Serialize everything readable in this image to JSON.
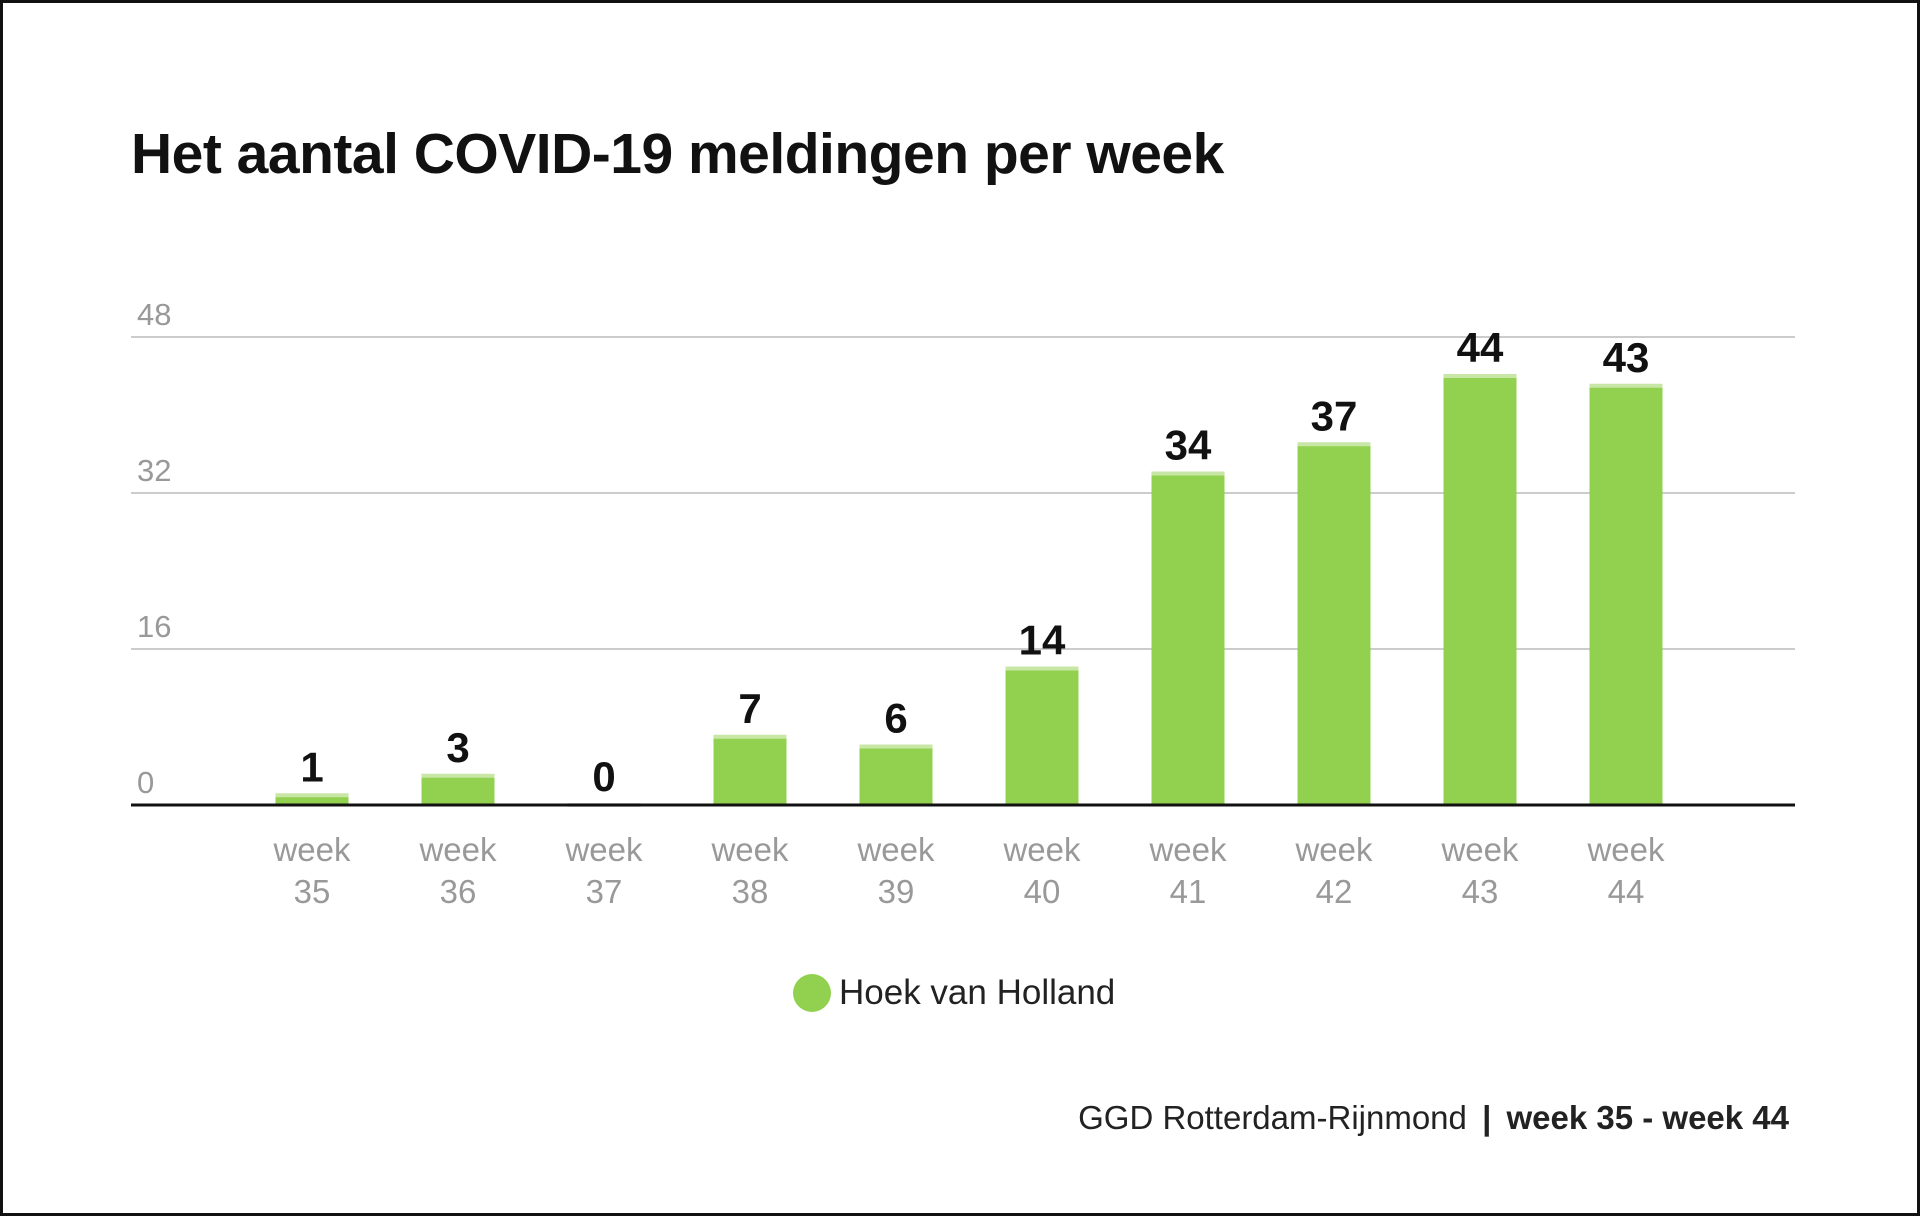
{
  "chart_data": {
    "type": "bar",
    "title": "Het aantal COVID-19 meldingen per week",
    "categories": [
      [
        "week",
        "35"
      ],
      [
        "week",
        "36"
      ],
      [
        "week",
        "37"
      ],
      [
        "week",
        "38"
      ],
      [
        "week",
        "39"
      ],
      [
        "week",
        "40"
      ],
      [
        "week",
        "41"
      ],
      [
        "week",
        "42"
      ],
      [
        "week",
        "43"
      ],
      [
        "week",
        "44"
      ]
    ],
    "series": [
      {
        "name": "Hoek van Holland",
        "values": [
          1,
          3,
          0,
          7,
          6,
          14,
          34,
          37,
          44,
          43
        ],
        "color": "#92d050"
      }
    ],
    "yticks": [
      0,
      16,
      32,
      48
    ],
    "ylim": [
      0,
      48
    ],
    "grid": true,
    "legend_position": "bottom-center",
    "xlabel": "",
    "ylabel": ""
  },
  "footer": {
    "source": "GGD Rotterdam-Rijnmond",
    "separator": "|",
    "range": "week 35 - week 44"
  }
}
